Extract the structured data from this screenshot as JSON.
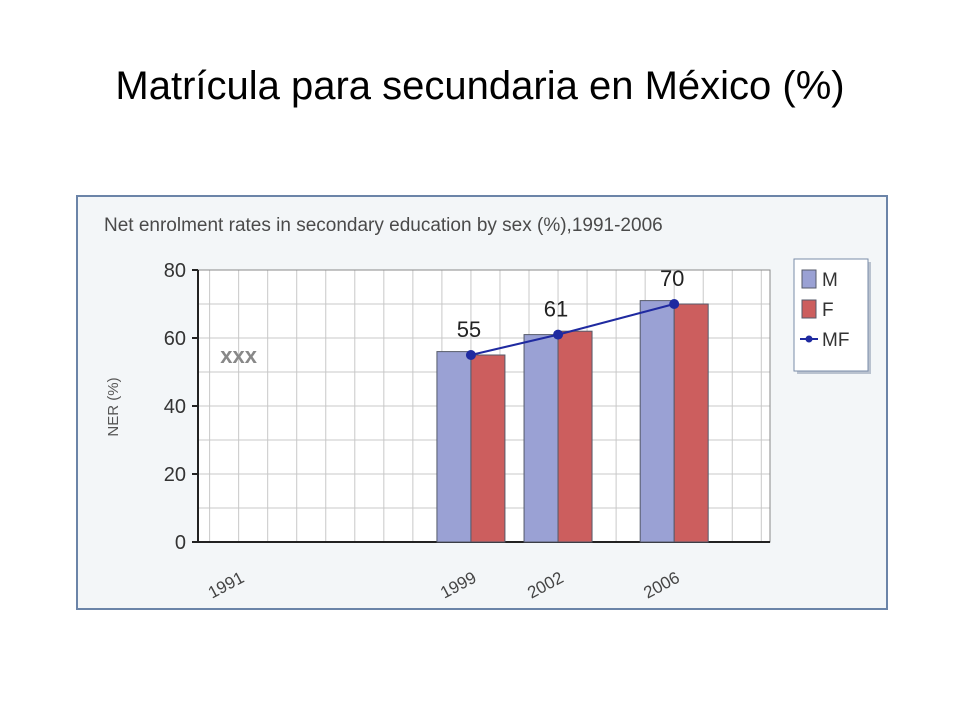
{
  "slide": {
    "title": "Matrícula para secundaria en México (%)"
  },
  "chart_data": {
    "type": "bar",
    "title": "Net enrolment rates in secondary education by sex (%),1991-2006",
    "ylabel": "NER (%)",
    "xlabel": "",
    "categories": [
      "1991",
      "1999",
      "2002",
      "2006"
    ],
    "missing_marker": "xxx",
    "ylim": [
      0,
      80
    ],
    "yticks": [
      0,
      20,
      40,
      60,
      80
    ],
    "grid": true,
    "legend_position": "right",
    "series": [
      {
        "name": "M",
        "kind": "bar",
        "color": "#9aa1d4",
        "values": [
          null,
          56,
          61,
          71
        ]
      },
      {
        "name": "F",
        "kind": "bar",
        "color": "#cc5e5e",
        "values": [
          null,
          55,
          62,
          70
        ]
      },
      {
        "name": "MF",
        "kind": "line",
        "color": "#1f2aa0",
        "values": [
          null,
          55,
          61,
          70
        ],
        "labels": [
          "",
          "55",
          "61",
          "70"
        ]
      }
    ]
  }
}
